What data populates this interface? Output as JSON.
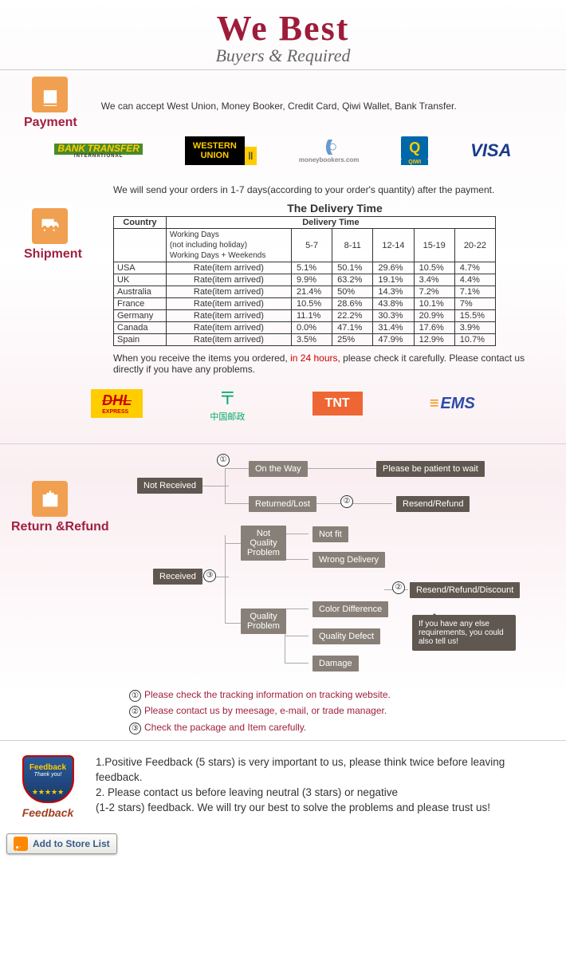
{
  "header": {
    "title": "We   Best",
    "subtitle": "Buyers & Required"
  },
  "payment": {
    "label": "Payment",
    "text": "We can accept West Union, Money Booker, Credit Card, Qiwi Wallet, Bank Transfer.",
    "logos": {
      "bank1": "BANK",
      "bank2": "TRANSFER",
      "bank3": "INTERNATIONAL",
      "wu1": "WESTERN",
      "wu2": "UNION",
      "mb": "moneybookers.com",
      "qiwi": "Q",
      "qiwi2": "QIWI",
      "visa": "VISA"
    }
  },
  "shipment": {
    "label": "Shipment",
    "intro": "We will send your orders in 1-7 days(according to your order's quantity) after the payment.",
    "table_title": "The Delivery Time",
    "h_country": "Country",
    "h_delivery": "Delivery Time",
    "wrap_line1": "Working Days",
    "wrap_line2": "(not including holiday)",
    "wrap_line3": "Working Days + Weekends",
    "cols": [
      "5-7",
      "8-11",
      "12-14",
      "15-19",
      "20-22"
    ],
    "rate_label": "Rate(item arrived)",
    "rows": [
      {
        "c": "USA",
        "v": [
          "5.1%",
          "50.1%",
          "29.6%",
          "10.5%",
          "4.7%"
        ]
      },
      {
        "c": "UK",
        "v": [
          "9.9%",
          "63.2%",
          "19.1%",
          "3.4%",
          "4.4%"
        ]
      },
      {
        "c": "Australia",
        "v": [
          "21.4%",
          "50%",
          "14.3%",
          "7.2%",
          "7.1%"
        ]
      },
      {
        "c": "France",
        "v": [
          "10.5%",
          "28.6%",
          "43.8%",
          "10.1%",
          "7%"
        ]
      },
      {
        "c": "Germany",
        "v": [
          "11.1%",
          "22.2%",
          "30.3%",
          "20.9%",
          "15.5%"
        ]
      },
      {
        "c": "Canada",
        "v": [
          "0.0%",
          "47.1%",
          "31.4%",
          "17.6%",
          "3.9%"
        ]
      },
      {
        "c": "Spain",
        "v": [
          "3.5%",
          "25%",
          "47.9%",
          "12.9%",
          "10.7%"
        ]
      }
    ],
    "note1": "When you receive the items you ordered, ",
    "note_red": "in 24 hours",
    "note2": ", please check it carefully. Please contact us directly if you have any problems.",
    "logos": {
      "dhl": "DHL",
      "dhl2": "EXPRESS",
      "cp": "中国邮政",
      "tnt": "TNT",
      "ems": "EMS"
    }
  },
  "refund": {
    "label": "Return &Refund",
    "nodes": {
      "not_received": "Not Received",
      "received": "Received",
      "on_way": "On the Way",
      "returned": "Returned/Lost",
      "patient": "Please be patient to wait",
      "resend": "Resend/Refund",
      "nqp": "Not\nQuality\nProblem",
      "qp": "Quality\nProblem",
      "notfit": "Not fit",
      "wrong": "Wrong Delivery",
      "color": "Color Difference",
      "defect": "Quality Defect",
      "damage": "Damage",
      "rrd": "Resend/Refund/Discount",
      "bubble": "If you have any else requirements, you could also tell us!"
    },
    "notes": {
      "n1": "Please check the tracking information on tracking website.",
      "n2": "Please contact us by meesage, e-mail, or trade manager.",
      "n3": "Check the package and Item carefully."
    }
  },
  "feedback": {
    "label": "Feedback",
    "shield": "Feedback",
    "shield_sub": "Thank you!",
    "t1": "1.Positive Feedback (5 stars) is very important to us, please think twice before leaving feedback.",
    "t2": "2. Please contact us before leaving neutral (3 stars) or negative",
    "t3": "(1-2 stars) feedback. We will try our best to solve the problems and please trust us!"
  },
  "footer": {
    "btn": "Add to Store List"
  }
}
